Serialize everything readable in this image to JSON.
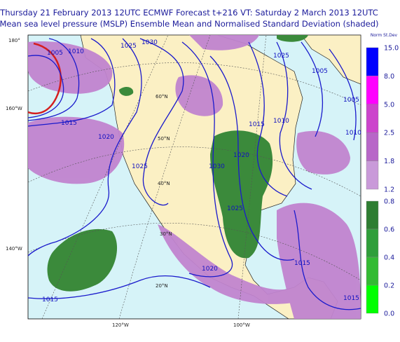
{
  "header": {
    "line1": "Thursday 21 February 2013 12UTC ECMWF Forecast t+216  VT: Saturday 2 March 2013 12UTC",
    "line2": "Mean sea level pressure (MSLP) Ensemble Mean and Normalised Standard Deviation (shaded)"
  },
  "colorbar": {
    "title": "Norm St.Dev",
    "upper_labels": [
      "15.0",
      "8.0",
      "5.0",
      "2.5",
      "1.8",
      "1.2"
    ],
    "upper_colors": [
      "#0000ff",
      "#ff00ff",
      "#cc44cc",
      "#b866c8",
      "#c99ad9"
    ],
    "lower_labels": [
      "0.8",
      "0.6",
      "0.4",
      "0.2",
      "0.0"
    ],
    "lower_colors": [
      "#2e7d32",
      "#2f9e3a",
      "#33bb33",
      "#00ff00"
    ]
  },
  "contour_labels": [
    "1005",
    "1010",
    "1025",
    "1030",
    "1015",
    "1020",
    "1025",
    "1030",
    "1020",
    "1015",
    "1010",
    "1025",
    "1005",
    "1005",
    "1010",
    "1025",
    "1020",
    "1015",
    "1015",
    "1015"
  ],
  "geo_labels": [
    "180°",
    "160°W",
    "140°W",
    "120°W",
    "100°W",
    "60°N",
    "50°N",
    "40°N",
    "30°N",
    "20°N"
  ]
}
